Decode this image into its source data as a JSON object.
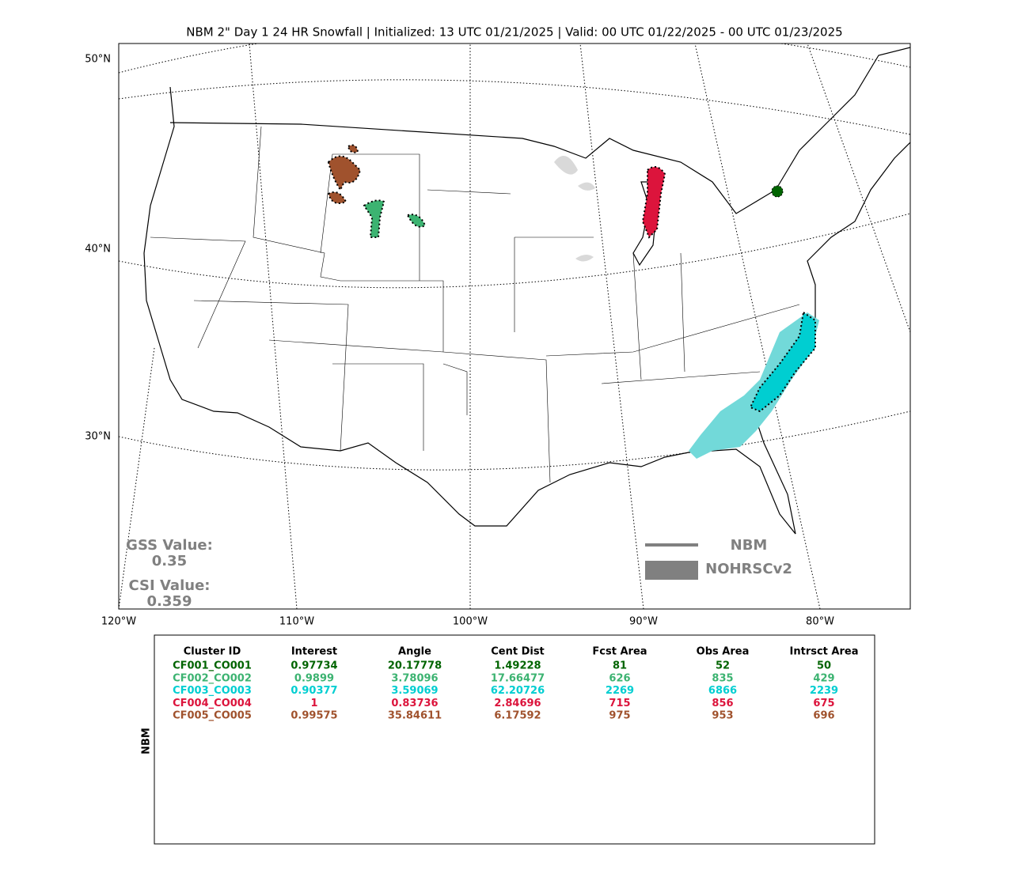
{
  "title": "NBM 2\" Day 1 24 HR Snowfall | Initialized: 13 UTC 01/21/2025 | Valid: 00 UTC 01/22/2025 - 00 UTC 01/23/2025",
  "lat_labels": [
    "50°N",
    "40°N",
    "30°N"
  ],
  "lon_labels": [
    "120°W",
    "110°W",
    "100°W",
    "90°W",
    "80°W"
  ],
  "scores": {
    "gss_label": "GSS Value:",
    "gss_value": "0.35",
    "csi_label": "CSI Value:",
    "csi_value": "0.359"
  },
  "legend": [
    "NBM",
    "NOHRSCv2"
  ],
  "table": {
    "side_label": "NBM",
    "headers": [
      "Cluster ID",
      "Interest",
      "Angle",
      "Cent Dist",
      "Fcst Area",
      "Obs Area",
      "Intrsct Area"
    ],
    "rows": [
      [
        "CF001_CO001",
        "0.97734",
        "20.17778",
        "1.49228",
        "81",
        "52",
        "50"
      ],
      [
        "CF002_CO002",
        "0.9899",
        "3.78096",
        "17.66477",
        "626",
        "835",
        "429"
      ],
      [
        "CF003_CO003",
        "0.90377",
        "3.59069",
        "62.20726",
        "2269",
        "6866",
        "2239"
      ],
      [
        "CF004_CO004",
        "1",
        "0.83736",
        "2.84696",
        "715",
        "856",
        "675"
      ],
      [
        "CF005_CO005",
        "0.99575",
        "35.84611",
        "6.17592",
        "975",
        "953",
        "696"
      ]
    ]
  }
}
